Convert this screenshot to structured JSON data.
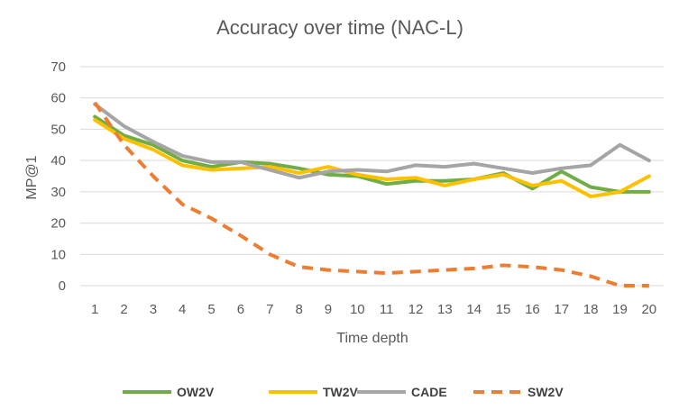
{
  "chart_data": {
    "type": "line",
    "title": "Accuracy over time (NAC-L)",
    "xlabel": "Time depth",
    "ylabel": "MP@1",
    "ylim": [
      0,
      70
    ],
    "yticks": [
      0,
      10,
      20,
      30,
      40,
      50,
      60,
      70
    ],
    "grid": true,
    "legend_position": "bottom",
    "categories": [
      "1",
      "2",
      "3",
      "4",
      "5",
      "6",
      "7",
      "8",
      "9",
      "10",
      "11",
      "12",
      "13",
      "14",
      "15",
      "16",
      "17",
      "18",
      "19",
      "20"
    ],
    "series": [
      {
        "name": "OW2V",
        "color": "#70AD47",
        "dashed": false,
        "values": [
          54,
          48,
          45,
          40,
          38,
          39.5,
          39,
          37.5,
          35.5,
          35,
          32.5,
          33.5,
          33.5,
          34,
          36,
          31,
          36.5,
          31.5,
          30,
          30
        ]
      },
      {
        "name": "TW2V",
        "color": "#FFC000",
        "dashed": false,
        "values": [
          53,
          47,
          43.5,
          38.5,
          37,
          37.5,
          38,
          36,
          38,
          35.5,
          34,
          34.5,
          32,
          34,
          35.5,
          32,
          33.5,
          28.5,
          30,
          35
        ]
      },
      {
        "name": "CADE",
        "color": "#A5A5A5",
        "dashed": false,
        "values": [
          58,
          51,
          46,
          41.5,
          39.5,
          39.5,
          37,
          34.5,
          36.5,
          37,
          36.5,
          38.5,
          38,
          39,
          37.5,
          36,
          37.5,
          38.5,
          45,
          40
        ]
      },
      {
        "name": "SW2V",
        "color": "#ED7D31",
        "dashed": true,
        "values": [
          58.5,
          45,
          35,
          26,
          21.5,
          16,
          10,
          6,
          5,
          4.5,
          4,
          4.5,
          5,
          5.5,
          6.5,
          6,
          5,
          3,
          0,
          0
        ]
      }
    ]
  }
}
